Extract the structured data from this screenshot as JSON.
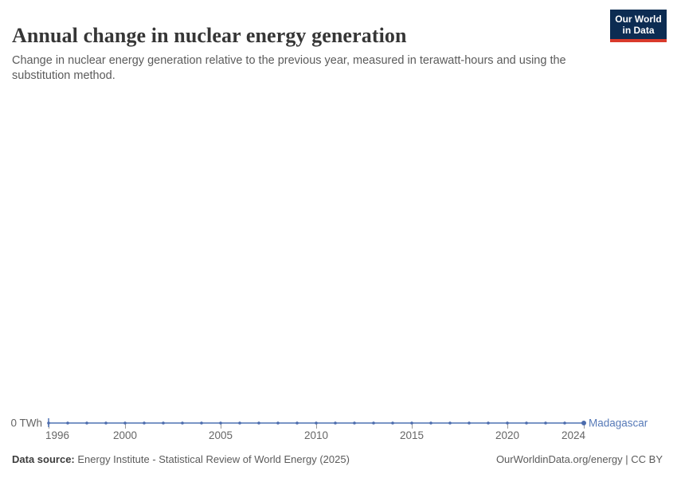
{
  "header": {
    "logo": {
      "line1": "Our World",
      "line2": "in Data"
    }
  },
  "footer": {
    "data_source_label": "Data source:",
    "data_source_text": "Energy Institute - Statistical Review of World Energy (2025)",
    "link_text": "OurWorldinData.org/energy | CC BY"
  },
  "colors": {
    "line": "#4f72b4",
    "marker": "#4c6cad",
    "entity_label": "#577ab8",
    "axis_text": "#666666",
    "tick_mark": "#999999",
    "logo_bg": "#0c2c52",
    "logo_bar": "#d93a2b"
  },
  "chart_data": {
    "type": "line",
    "title": "Annual change in nuclear energy generation",
    "subtitle": "Change in nuclear energy generation relative to the previous year, measured in terawatt-hours and using the substitution method.",
    "entity": "Madagascar",
    "unit": "TWh",
    "y_zero_label": "0 TWh",
    "xlabel": "",
    "ylabel": "",
    "grid": false,
    "legend_position": "line-end",
    "x_ticks": [
      1996,
      2000,
      2005,
      2010,
      2015,
      2020,
      2024
    ],
    "x": [
      1996,
      1997,
      1998,
      1999,
      2000,
      2001,
      2002,
      2003,
      2004,
      2005,
      2006,
      2007,
      2008,
      2009,
      2010,
      2011,
      2012,
      2013,
      2014,
      2015,
      2016,
      2017,
      2018,
      2019,
      2020,
      2021,
      2022,
      2023,
      2024
    ],
    "series": [
      {
        "name": "Madagascar",
        "values": [
          0,
          0,
          0,
          0,
          0,
          0,
          0,
          0,
          0,
          0,
          0,
          0,
          0,
          0,
          0,
          0,
          0,
          0,
          0,
          0,
          0,
          0,
          0,
          0,
          0,
          0,
          0,
          0,
          0
        ]
      }
    ]
  }
}
